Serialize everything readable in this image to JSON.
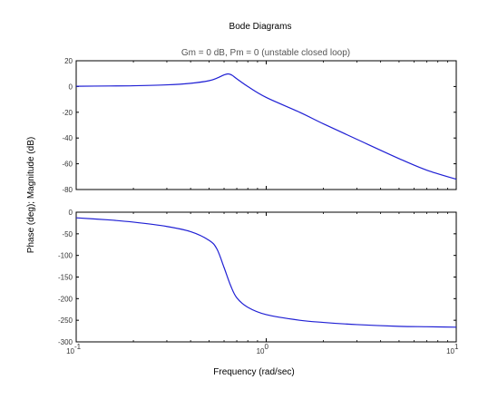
{
  "figure": {
    "title": "Bode Diagrams",
    "subtitle": "Gm = 0 dB, Pm = 0 (unstable closed loop)",
    "ylabel": "Phase (deg); Magnitude (dB)",
    "xlabel": "Frequency (rad/sec)"
  },
  "chart_data": [
    {
      "type": "line",
      "name": "magnitude",
      "xscale": "log",
      "xlim": [
        0.1,
        10
      ],
      "ylim": [
        -80,
        20
      ],
      "yticks": [
        20,
        0,
        -20,
        -40,
        -60,
        -80
      ],
      "ytick_labels": [
        "20",
        "0",
        "-20",
        "-40",
        "-60",
        "-80"
      ],
      "grid": false,
      "x": [
        0.1,
        0.15,
        0.2,
        0.3,
        0.4,
        0.5,
        0.55,
        0.6,
        0.63,
        0.66,
        0.7,
        0.8,
        1.0,
        1.5,
        2,
        3,
        5,
        7,
        10
      ],
      "y": [
        0.2,
        0.4,
        0.6,
        1.3,
        2.5,
        4.5,
        6.5,
        9.0,
        9.8,
        8.8,
        6.0,
        0.0,
        -8.5,
        -20,
        -29,
        -41,
        -56,
        -65,
        -72
      ]
    },
    {
      "type": "line",
      "name": "phase",
      "xscale": "log",
      "xlim": [
        0.1,
        10
      ],
      "ylim": [
        -300,
        0
      ],
      "yticks": [
        0,
        -50,
        -100,
        -150,
        -200,
        -250,
        -300
      ],
      "ytick_labels": [
        "0",
        "-50",
        "-100",
        "-150",
        "-200",
        "-250",
        "-300"
      ],
      "xticks": [
        0.1,
        1,
        10
      ],
      "xtick_labels": [
        [
          "10",
          "-1"
        ],
        [
          "10",
          "0"
        ],
        [
          "10",
          "1"
        ]
      ],
      "grid": false,
      "x": [
        0.1,
        0.15,
        0.2,
        0.3,
        0.4,
        0.5,
        0.55,
        0.6,
        0.65,
        0.7,
        0.8,
        1.0,
        1.5,
        2,
        3,
        5,
        7,
        10
      ],
      "y": [
        -13,
        -18,
        -23,
        -33,
        -45,
        -65,
        -85,
        -128,
        -170,
        -198,
        -220,
        -237,
        -250,
        -255,
        -260,
        -264,
        -265,
        -266
      ]
    }
  ]
}
